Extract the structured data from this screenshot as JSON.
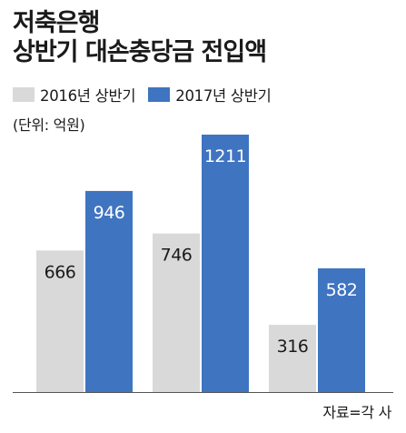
{
  "title_line1": "저축은행",
  "title_line2": "상반기 대손충당금 전입액",
  "unit": "(단위: 억원)",
  "source": "자료=각 사",
  "colors": {
    "series_2016": "#d9d9d9",
    "series_2017": "#3f74c1",
    "axis": "#555555"
  },
  "chart_data": {
    "type": "bar",
    "categories": [
      "",
      "",
      ""
    ],
    "series": [
      {
        "name": "2016년 상반기",
        "values": [
          666,
          746,
          316
        ]
      },
      {
        "name": "2017년 상반기",
        "values": [
          946,
          1211,
          582
        ]
      }
    ],
    "ylim": [
      0,
      1211
    ],
    "grid": false,
    "legend": "top-left",
    "data_labels": true
  }
}
